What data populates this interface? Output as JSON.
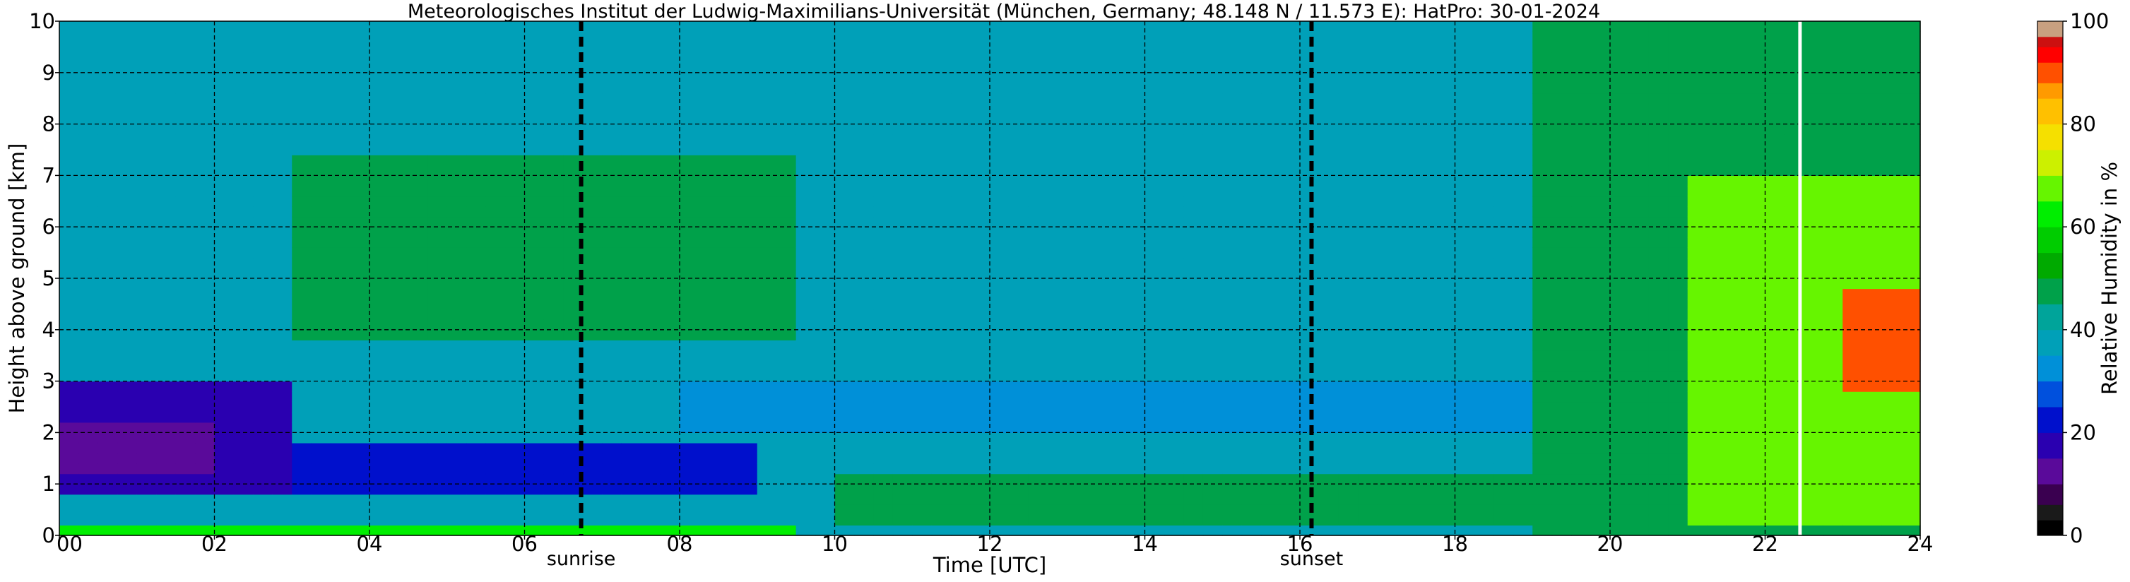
{
  "chart_data": {
    "type": "heatmap",
    "title": "Meteorologisches Institut der Ludwig-Maximilians-Universität (München, Germany; 48.148 N / 11.573 E):    HatPro: 30-01-2024",
    "xlabel": "Time [UTC]",
    "ylabel": "Height above ground [km]",
    "colorbar_label": "Relative Humidity in %",
    "xlim": [
      0,
      24
    ],
    "ylim": [
      0,
      10
    ],
    "clim": [
      0,
      100
    ],
    "x_ticks": [
      {
        "value": 0,
        "label": "00"
      },
      {
        "value": 2,
        "label": "02"
      },
      {
        "value": 4,
        "label": "04"
      },
      {
        "value": 6,
        "label": "06"
      },
      {
        "value": 8,
        "label": "08"
      },
      {
        "value": 10,
        "label": "10"
      },
      {
        "value": 12,
        "label": "12"
      },
      {
        "value": 14,
        "label": "14"
      },
      {
        "value": 16,
        "label": "16"
      },
      {
        "value": 18,
        "label": "18"
      },
      {
        "value": 20,
        "label": "20"
      },
      {
        "value": 22,
        "label": "22"
      },
      {
        "value": 24,
        "label": "24"
      }
    ],
    "y_ticks": [
      {
        "value": 0,
        "label": "0"
      },
      {
        "value": 1,
        "label": "1"
      },
      {
        "value": 2,
        "label": "2"
      },
      {
        "value": 3,
        "label": "3"
      },
      {
        "value": 4,
        "label": "4"
      },
      {
        "value": 5,
        "label": "5"
      },
      {
        "value": 6,
        "label": "6"
      },
      {
        "value": 7,
        "label": "7"
      },
      {
        "value": 8,
        "label": "8"
      },
      {
        "value": 9,
        "label": "9"
      },
      {
        "value": 10,
        "label": "10"
      }
    ],
    "colorbar_ticks": [
      {
        "value": 0,
        "label": "0"
      },
      {
        "value": 20,
        "label": "20"
      },
      {
        "value": 40,
        "label": "40"
      },
      {
        "value": 60,
        "label": "60"
      },
      {
        "value": 80,
        "label": "80"
      },
      {
        "value": 100,
        "label": "100"
      }
    ],
    "grid": true,
    "event_lines": [
      {
        "label": "sunrise",
        "time": 6.73
      },
      {
        "label": "sunset",
        "time": 16.15
      }
    ],
    "data_gap_line": {
      "time": 22.45,
      "color": "#ffffff"
    },
    "colormap": [
      {
        "value": 0,
        "color": "#000000"
      },
      {
        "value": 3,
        "color": "#1a1a1a"
      },
      {
        "value": 6,
        "color": "#3a0050"
      },
      {
        "value": 10,
        "color": "#5a0a9a"
      },
      {
        "value": 15,
        "color": "#2a00b0"
      },
      {
        "value": 20,
        "color": "#0010cc"
      },
      {
        "value": 25,
        "color": "#0050dd"
      },
      {
        "value": 30,
        "color": "#0090d8"
      },
      {
        "value": 35,
        "color": "#00a0b8"
      },
      {
        "value": 40,
        "color": "#00a49a"
      },
      {
        "value": 45,
        "color": "#00a14a"
      },
      {
        "value": 50,
        "color": "#00aa00"
      },
      {
        "value": 55,
        "color": "#00cc00"
      },
      {
        "value": 60,
        "color": "#00ee00"
      },
      {
        "value": 65,
        "color": "#66f500"
      },
      {
        "value": 70,
        "color": "#ccf000"
      },
      {
        "value": 75,
        "color": "#f5e000"
      },
      {
        "value": 80,
        "color": "#ffc000"
      },
      {
        "value": 85,
        "color": "#ff9a00"
      },
      {
        "value": 88,
        "color": "#ff5000"
      },
      {
        "value": 92,
        "color": "#ff0000"
      },
      {
        "value": 95,
        "color": "#cc1010"
      },
      {
        "value": 97,
        "color": "#c8a080"
      },
      {
        "value": 100,
        "color": "#d8c8b0"
      }
    ],
    "grid_time_step_h": 0.25,
    "grid_height_step_km": 0.2,
    "rh_fields": [
      {
        "region": "background free troposphere",
        "time": [
          0,
          24
        ],
        "height": [
          0,
          10
        ],
        "rh": 38
      },
      {
        "region": "mid-level moist band night",
        "time": [
          3,
          9.5
        ],
        "height": [
          3.8,
          7.5
        ],
        "rh": 47
      },
      {
        "region": "dry layer night",
        "time": [
          0,
          3
        ],
        "height": [
          0.8,
          3
        ],
        "rh": 18
      },
      {
        "region": "very dry core",
        "time": [
          0,
          2
        ],
        "height": [
          1.2,
          2.2
        ],
        "rh": 10
      },
      {
        "region": "dry layer morning",
        "time": [
          3,
          9
        ],
        "height": [
          0.8,
          1.8
        ],
        "rh": 20
      },
      {
        "region": "dry layer day",
        "time": [
          8,
          19
        ],
        "height": [
          2,
          3
        ],
        "rh": 30
      },
      {
        "region": "boundary layer moist day",
        "time": [
          10,
          19
        ],
        "height": [
          0.2,
          1.2
        ],
        "rh": 47
      },
      {
        "region": "surface layer",
        "time": [
          0,
          9.5
        ],
        "height": [
          0,
          0.3
        ],
        "rh": 62
      },
      {
        "region": "evening moistening",
        "time": [
          19,
          24
        ],
        "height": [
          0,
          10
        ],
        "rh": 48
      },
      {
        "region": "late night moist layer",
        "time": [
          21,
          24
        ],
        "height": [
          0.3,
          7
        ],
        "rh": 66
      },
      {
        "region": "saturated cloud layer",
        "time": [
          23,
          24
        ],
        "height": [
          2.8,
          4.8
        ],
        "rh": 90
      }
    ]
  }
}
